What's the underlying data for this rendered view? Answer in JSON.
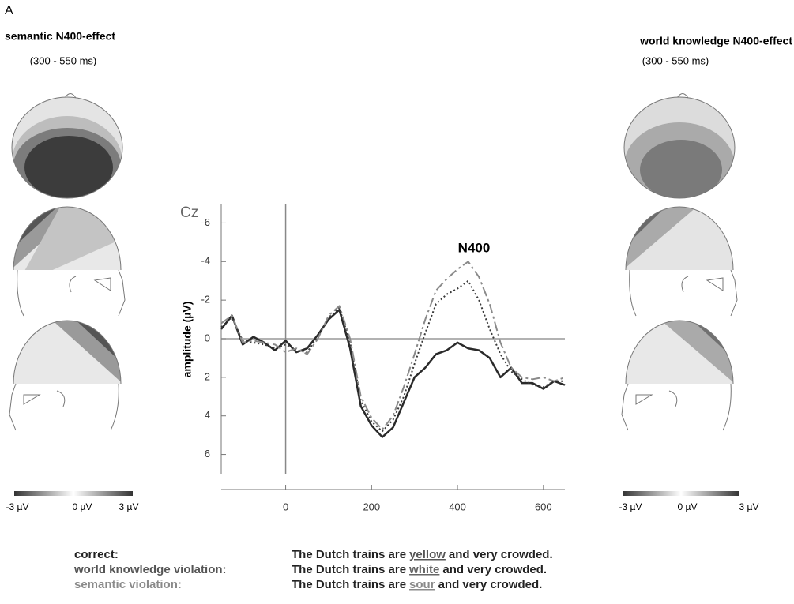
{
  "panel_label": "A",
  "topomaps": {
    "left": {
      "title": "semantic N400-effect",
      "window": "(300 - 550 ms)",
      "scale": [
        "-3 µV",
        "0 µV",
        "3 µV"
      ]
    },
    "right": {
      "title": "world knowledge N400-effect",
      "window": "(300 - 550 ms)",
      "scale": [
        "-3 µV",
        "0 µV",
        "3 µV"
      ]
    }
  },
  "sentences": [
    {
      "before": "The Dutch trains are",
      "word": "yellow",
      "after": "and very crowded."
    },
    {
      "before": "The Dutch trains are",
      "word": "white",
      "after": "and very crowded."
    },
    {
      "before": "The Dutch trains are",
      "word": "sour",
      "after": "and very crowded."
    }
  ],
  "chart_data": {
    "type": "line",
    "channel": "Cz",
    "ylabel": "amplitude (µV)",
    "annotation": "N400",
    "xlim": [
      -150,
      650
    ],
    "xticks": [
      0,
      200,
      400,
      600
    ],
    "ylim": [
      7,
      -7
    ],
    "yticks": [
      -6,
      -4,
      -2,
      0,
      2,
      4,
      6
    ],
    "x": [
      -150,
      -125,
      -100,
      -75,
      -50,
      -25,
      0,
      25,
      50,
      75,
      100,
      125,
      150,
      175,
      200,
      225,
      250,
      275,
      300,
      325,
      350,
      375,
      400,
      425,
      450,
      475,
      500,
      525,
      550,
      575,
      600,
      625,
      650
    ],
    "series": [
      {
        "name": "correct:",
        "color": "#2a2a2a",
        "dash": "solid",
        "values": [
          -0.5,
          -1.2,
          0.3,
          -0.1,
          0.2,
          0.6,
          0.1,
          0.7,
          0.5,
          -0.2,
          -1.0,
          -1.5,
          0.5,
          3.5,
          4.5,
          5.1,
          4.6,
          3.3,
          2.0,
          1.5,
          0.8,
          0.6,
          0.2,
          0.5,
          0.6,
          1.0,
          2.0,
          1.5,
          2.3,
          2.3,
          2.6,
          2.2,
          2.4
        ]
      },
      {
        "name": "world knowledge violation:",
        "color": "#3a3a3a",
        "dash": "dotted",
        "values": [
          -0.6,
          -1.1,
          0.1,
          0.2,
          0.3,
          0.5,
          0.3,
          0.6,
          0.7,
          -0.1,
          -1.1,
          -1.6,
          0.2,
          3.2,
          4.3,
          4.8,
          4.2,
          3.0,
          1.3,
          -0.3,
          -1.8,
          -2.3,
          -2.6,
          -3.0,
          -2.0,
          -0.5,
          0.8,
          1.7,
          2.1,
          2.4,
          2.5,
          2.2,
          2.2
        ]
      },
      {
        "name": "semantic violation:",
        "color": "#8a8a8a",
        "dash": "dashed",
        "values": [
          -0.8,
          -1.2,
          0.2,
          0.1,
          0.2,
          0.3,
          0.7,
          0.5,
          0.8,
          0.0,
          -1.2,
          -1.7,
          0.0,
          3.0,
          4.1,
          4.7,
          4.0,
          2.5,
          0.8,
          -1.0,
          -2.5,
          -3.1,
          -3.6,
          -4.0,
          -3.2,
          -1.8,
          0.2,
          1.5,
          2.0,
          2.1,
          2.0,
          2.2,
          2.0
        ]
      }
    ]
  }
}
